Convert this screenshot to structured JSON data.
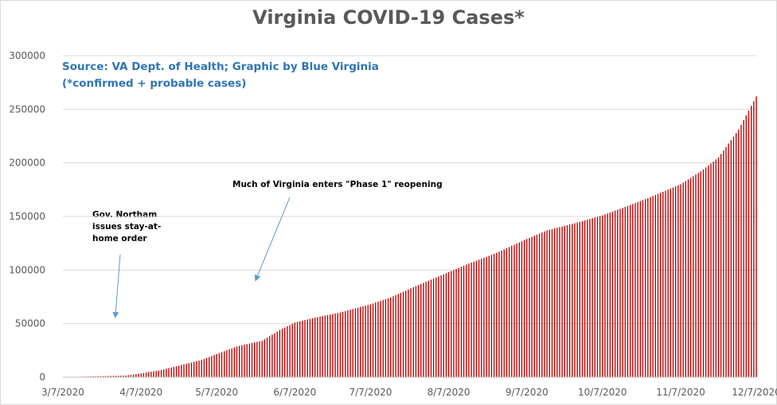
{
  "chart_data": {
    "type": "bar",
    "title": "Virginia COVID-19 Cases*",
    "subtitle_lines": [
      "Source: VA Dept. of Health; Graphic by Blue Virginia",
      "(*confirmed + probable cases)"
    ],
    "xlabel": "",
    "ylabel": "",
    "ylim": [
      0,
      300000
    ],
    "y_ticks": [
      0,
      50000,
      100000,
      150000,
      200000,
      250000,
      300000
    ],
    "y_tick_labels": [
      "0",
      "50000",
      "100000",
      "150000",
      "200000",
      "250000",
      "300000"
    ],
    "x_range": [
      "2020-03-07",
      "2020-12-07"
    ],
    "x_ticks": [
      "2020-03-07",
      "2020-04-07",
      "2020-05-07",
      "2020-06-07",
      "2020-07-07",
      "2020-08-07",
      "2020-09-07",
      "2020-10-07",
      "2020-11-07",
      "2020-12-07"
    ],
    "x_tick_labels": [
      "3/7/2020",
      "4/7/2020",
      "5/7/2020",
      "6/7/2020",
      "7/7/2020",
      "8/7/2020",
      "9/7/2020",
      "10/7/2020",
      "11/7/2020",
      "12/7/2020"
    ],
    "series_color": "#c00000",
    "grid": true,
    "dates": [
      "2020-03-07",
      "2020-04-01",
      "2020-04-07",
      "2020-04-15",
      "2020-04-22",
      "2020-05-01",
      "2020-05-07",
      "2020-05-15",
      "2020-05-25",
      "2020-06-01",
      "2020-06-07",
      "2020-06-15",
      "2020-06-25",
      "2020-07-07",
      "2020-07-15",
      "2020-07-25",
      "2020-08-07",
      "2020-08-15",
      "2020-08-25",
      "2020-09-07",
      "2020-09-15",
      "2020-09-25",
      "2020-10-07",
      "2020-10-15",
      "2020-10-25",
      "2020-11-07",
      "2020-11-15",
      "2020-11-22",
      "2020-11-30",
      "2020-12-07"
    ],
    "values": [
      0,
      1500,
      3500,
      6600,
      10800,
      16000,
      21600,
      28700,
      34000,
      44000,
      51000,
      55600,
      60400,
      68000,
      74500,
      85000,
      98000,
      106000,
      115000,
      129000,
      137000,
      143000,
      151000,
      158000,
      167000,
      180000,
      192000,
      205000,
      231000,
      262000
    ],
    "annotations": [
      {
        "text": "Gov. Northam issues stay-at-home order",
        "date": "2020-03-30"
      },
      {
        "text": "Much of Virginia enters \"Phase 1\" reopening",
        "date": "2020-05-15"
      }
    ]
  }
}
